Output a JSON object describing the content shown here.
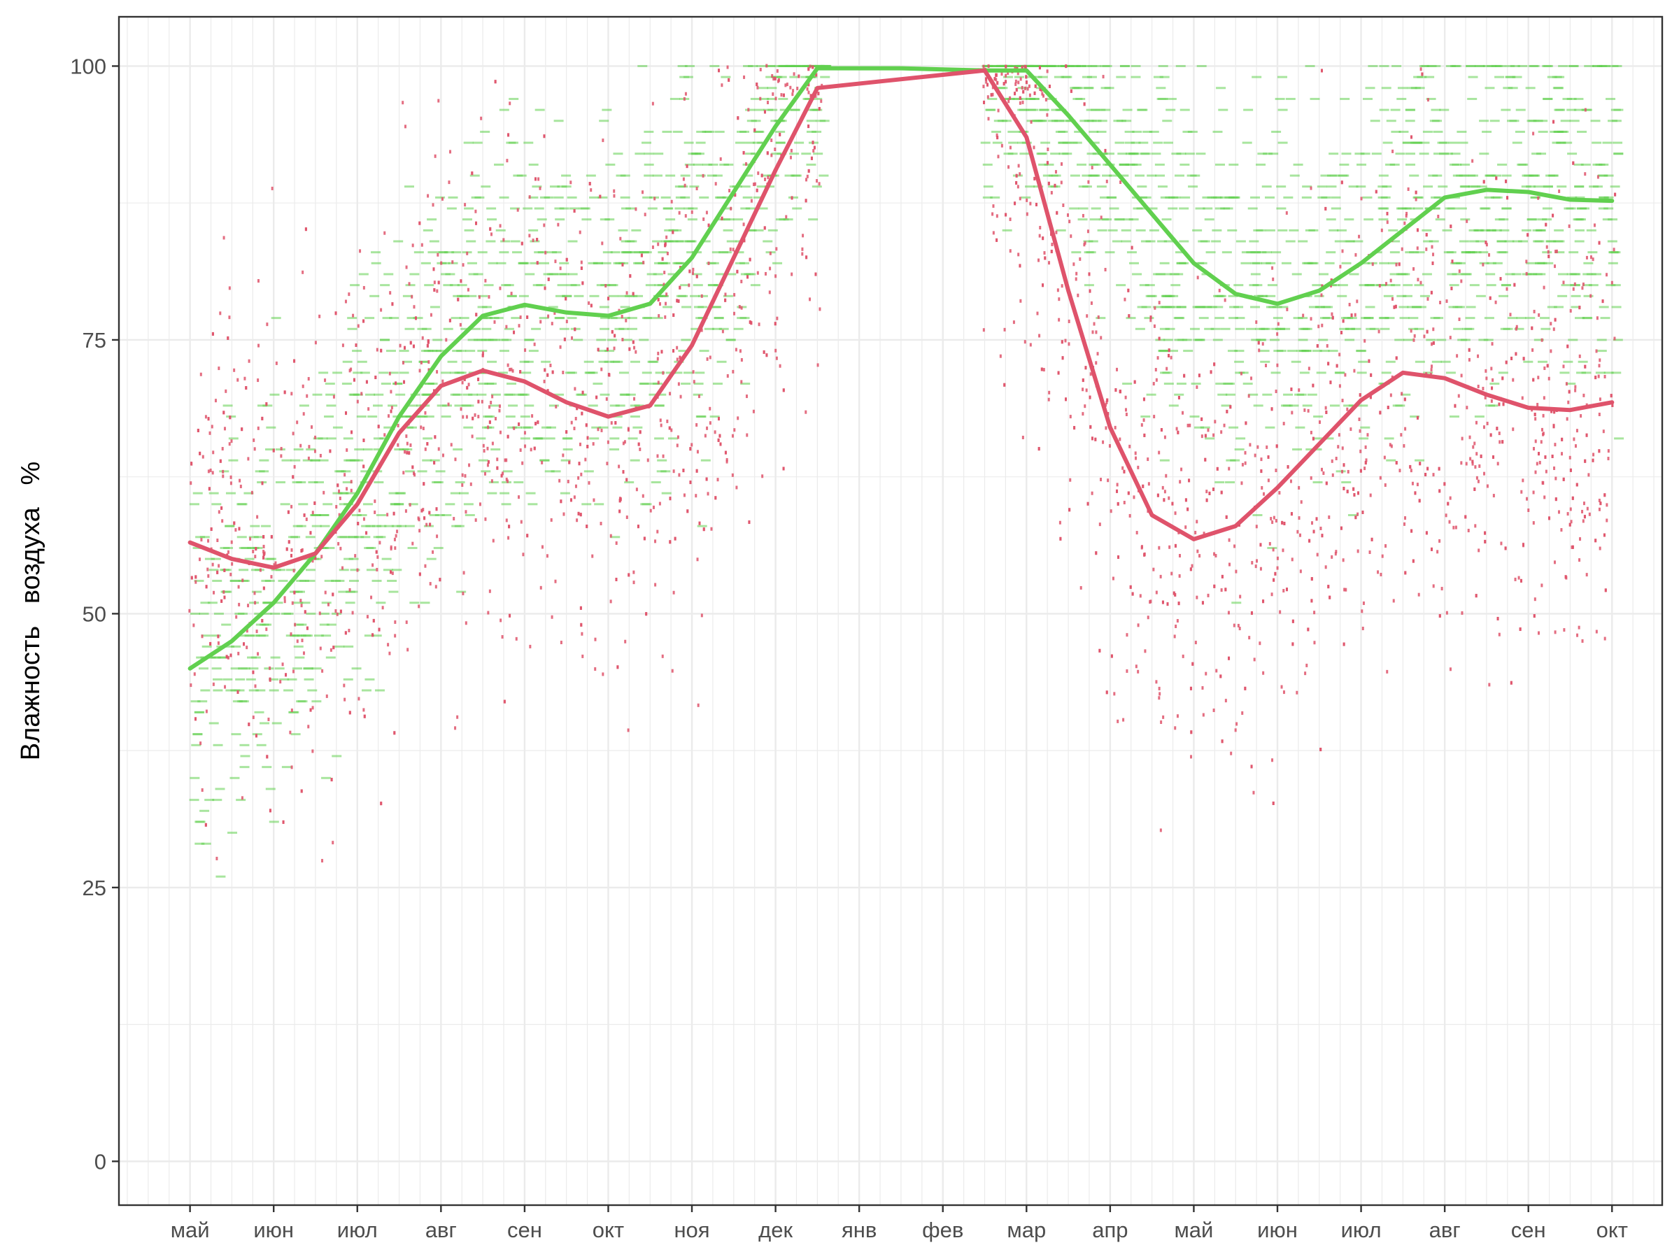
{
  "chart_data": {
    "type": "scatter",
    "title": "",
    "xlabel": "",
    "ylabel": "Влажность   воздуха   %",
    "ylim": [
      -4,
      104.5
    ],
    "xlim": [
      -0.85,
      17.6
    ],
    "x_tick_labels": [
      "май",
      "июн",
      "июл",
      "авг",
      "сен",
      "окт",
      "ноя",
      "дек",
      "янв",
      "фев",
      "мар",
      "апр",
      "май",
      "июн",
      "июл",
      "авг",
      "сен",
      "окт"
    ],
    "y_ticks": [
      0,
      25,
      50,
      75,
      100
    ],
    "y_tick_labels": [
      "0",
      "25",
      "50",
      "75",
      "100"
    ],
    "grid": true,
    "theme": "bw",
    "colors": {
      "green": "#61D04F",
      "red": "#DF536B",
      "grid": "#ebebeb",
      "panel_border": "#333333"
    },
    "series": [
      {
        "color": "#61D04F",
        "kind": "smooth_line",
        "x": [
          0.0,
          0.5,
          1.0,
          1.5,
          2.0,
          2.5,
          3.0,
          3.5,
          4.0,
          4.5,
          5.0,
          5.5,
          6.0,
          6.5,
          7.0,
          7.5,
          8.0,
          8.5,
          9.0,
          9.5,
          10.0,
          10.5,
          11.0,
          11.5,
          12.0,
          12.5,
          13.0,
          13.5,
          14.0,
          14.5,
          15.0,
          15.5,
          16.0,
          16.5,
          17.0
        ],
        "y": [
          45,
          47.5,
          51,
          55.5,
          61,
          68,
          73.5,
          77.2,
          78.2,
          77.5,
          77.2,
          78.3,
          82.5,
          88.5,
          94.5,
          99.8,
          99.8,
          99.8,
          99.7,
          99.6,
          99.6,
          95.5,
          91,
          86.5,
          82,
          79.2,
          78.3,
          79.5,
          82,
          85,
          88,
          88.7,
          88.5,
          87.8,
          87.7
        ]
      },
      {
        "color": "#DF536B",
        "kind": "smooth_line",
        "x": [
          0.0,
          0.5,
          1.0,
          1.5,
          2.0,
          2.5,
          3.0,
          3.5,
          4.0,
          4.5,
          5.0,
          5.5,
          6.0,
          6.5,
          7.0,
          7.5,
          9.5,
          10.0,
          10.5,
          11.0,
          11.5,
          12.0,
          12.5,
          13.0,
          13.5,
          14.0,
          14.5,
          15.0,
          15.5,
          16.0,
          16.5,
          17.0
        ],
        "y": [
          56.5,
          55,
          54.2,
          55.5,
          60,
          66.5,
          70.8,
          72.2,
          71.2,
          69.3,
          68,
          69,
          74.5,
          82.5,
          90.5,
          98,
          99.6,
          93.5,
          79.5,
          67,
          59,
          56.8,
          58,
          61.5,
          65.5,
          69.5,
          72,
          71.5,
          70,
          68.8,
          68.6,
          69.3
        ]
      }
    ]
  }
}
